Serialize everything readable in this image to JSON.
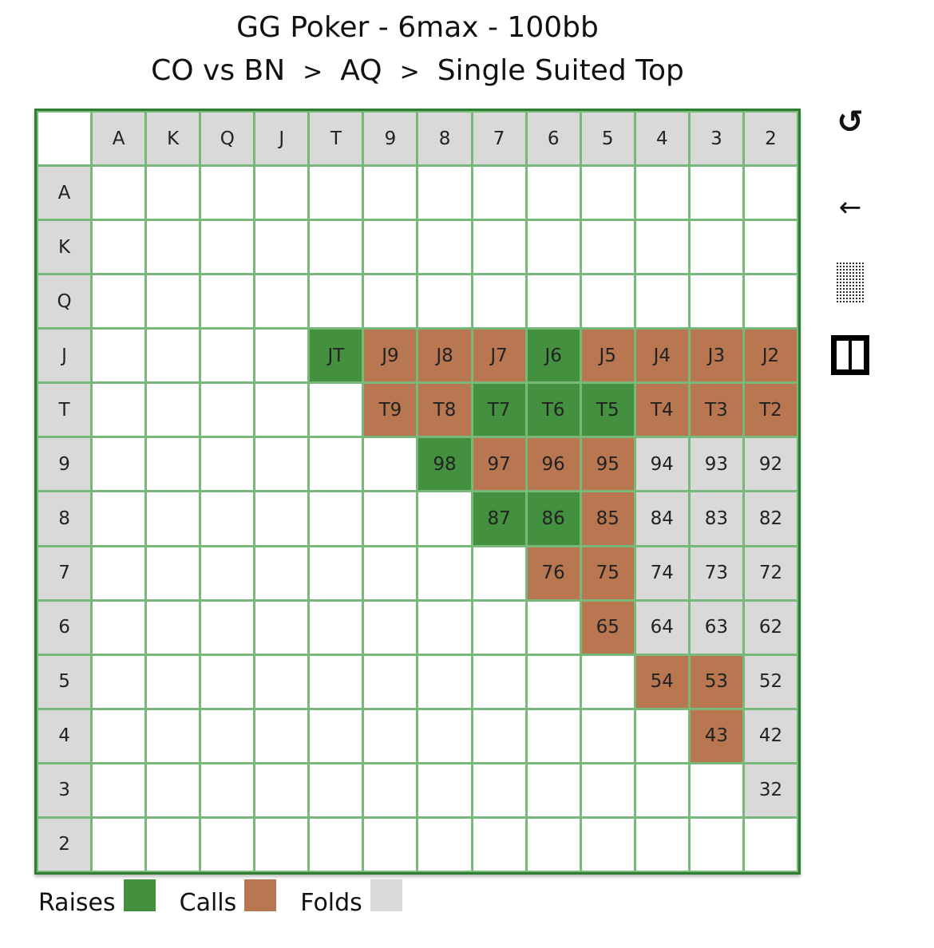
{
  "header": {
    "title_line1": "GG Poker - 6max - 100bb",
    "crumbs": [
      "CO vs BN",
      "AQ",
      "Single Suited Top"
    ],
    "separator": ">"
  },
  "grid": {
    "col_headers": [
      "A",
      "K",
      "Q",
      "J",
      "T",
      "9",
      "8",
      "7",
      "6",
      "5",
      "4",
      "3",
      "2"
    ],
    "row_headers": [
      "A",
      "K",
      "Q",
      "J",
      "T",
      "9",
      "8",
      "7",
      "6",
      "5",
      "4",
      "3",
      "2"
    ],
    "cells": [
      {
        "row": 3,
        "col": 4,
        "label": "JT",
        "action": "raise"
      },
      {
        "row": 3,
        "col": 5,
        "label": "J9",
        "action": "call"
      },
      {
        "row": 3,
        "col": 6,
        "label": "J8",
        "action": "call"
      },
      {
        "row": 3,
        "col": 7,
        "label": "J7",
        "action": "call"
      },
      {
        "row": 3,
        "col": 8,
        "label": "J6",
        "action": "raise"
      },
      {
        "row": 3,
        "col": 9,
        "label": "J5",
        "action": "call"
      },
      {
        "row": 3,
        "col": 10,
        "label": "J4",
        "action": "call"
      },
      {
        "row": 3,
        "col": 11,
        "label": "J3",
        "action": "call"
      },
      {
        "row": 3,
        "col": 12,
        "label": "J2",
        "action": "call"
      },
      {
        "row": 4,
        "col": 5,
        "label": "T9",
        "action": "call"
      },
      {
        "row": 4,
        "col": 6,
        "label": "T8",
        "action": "call"
      },
      {
        "row": 4,
        "col": 7,
        "label": "T7",
        "action": "raise"
      },
      {
        "row": 4,
        "col": 8,
        "label": "T6",
        "action": "raise"
      },
      {
        "row": 4,
        "col": 9,
        "label": "T5",
        "action": "raise"
      },
      {
        "row": 4,
        "col": 10,
        "label": "T4",
        "action": "call"
      },
      {
        "row": 4,
        "col": 11,
        "label": "T3",
        "action": "call"
      },
      {
        "row": 4,
        "col": 12,
        "label": "T2",
        "action": "call"
      },
      {
        "row": 5,
        "col": 6,
        "label": "98",
        "action": "raise"
      },
      {
        "row": 5,
        "col": 7,
        "label": "97",
        "action": "call"
      },
      {
        "row": 5,
        "col": 8,
        "label": "96",
        "action": "call"
      },
      {
        "row": 5,
        "col": 9,
        "label": "95",
        "action": "call"
      },
      {
        "row": 5,
        "col": 10,
        "label": "94",
        "action": "fold"
      },
      {
        "row": 5,
        "col": 11,
        "label": "93",
        "action": "fold"
      },
      {
        "row": 5,
        "col": 12,
        "label": "92",
        "action": "fold"
      },
      {
        "row": 6,
        "col": 7,
        "label": "87",
        "action": "raise"
      },
      {
        "row": 6,
        "col": 8,
        "label": "86",
        "action": "raise"
      },
      {
        "row": 6,
        "col": 9,
        "label": "85",
        "action": "call"
      },
      {
        "row": 6,
        "col": 10,
        "label": "84",
        "action": "fold"
      },
      {
        "row": 6,
        "col": 11,
        "label": "83",
        "action": "fold"
      },
      {
        "row": 6,
        "col": 12,
        "label": "82",
        "action": "fold"
      },
      {
        "row": 7,
        "col": 8,
        "label": "76",
        "action": "call"
      },
      {
        "row": 7,
        "col": 9,
        "label": "75",
        "action": "call"
      },
      {
        "row": 7,
        "col": 10,
        "label": "74",
        "action": "fold"
      },
      {
        "row": 7,
        "col": 11,
        "label": "73",
        "action": "fold"
      },
      {
        "row": 7,
        "col": 12,
        "label": "72",
        "action": "fold"
      },
      {
        "row": 8,
        "col": 9,
        "label": "65",
        "action": "call"
      },
      {
        "row": 8,
        "col": 10,
        "label": "64",
        "action": "fold"
      },
      {
        "row": 8,
        "col": 11,
        "label": "63",
        "action": "fold"
      },
      {
        "row": 8,
        "col": 12,
        "label": "62",
        "action": "fold"
      },
      {
        "row": 9,
        "col": 10,
        "label": "54",
        "action": "call"
      },
      {
        "row": 9,
        "col": 11,
        "label": "53",
        "action": "call"
      },
      {
        "row": 9,
        "col": 12,
        "label": "52",
        "action": "fold"
      },
      {
        "row": 10,
        "col": 11,
        "label": "43",
        "action": "call"
      },
      {
        "row": 10,
        "col": 12,
        "label": "42",
        "action": "fold"
      },
      {
        "row": 11,
        "col": 12,
        "label": "32",
        "action": "fold"
      }
    ]
  },
  "colors": {
    "raise": "#43913f",
    "call": "#b87750",
    "fold": "#d9d9d9",
    "grid_border": "#2e7d32"
  },
  "legend": [
    {
      "label": "Raises",
      "action": "raise"
    },
    {
      "label": "Calls",
      "action": "call"
    },
    {
      "label": "Folds",
      "action": "fold"
    }
  ],
  "toolbar": {
    "reset_glyph": "↺",
    "back_glyph": "←",
    "icons": [
      "reset-icon",
      "back-arrow-icon",
      "pattern-icon",
      "split-view-icon"
    ]
  }
}
